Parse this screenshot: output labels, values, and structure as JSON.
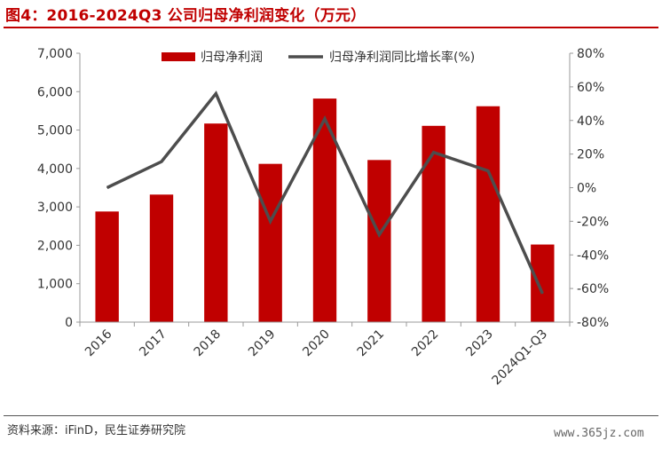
{
  "title": "图4：2016-2024Q3 公司归母净利润变化（万元）",
  "source": "资料来源：iFinD，民生证券研究院",
  "watermark": "www.365jz.com",
  "colors": {
    "bar": "#c00000",
    "line": "#4d4d4d",
    "axis": "#999999",
    "text": "#333333",
    "title": "#c00000"
  },
  "chart_data": {
    "type": "bar",
    "categories": [
      "2016",
      "2017",
      "2018",
      "2019",
      "2020",
      "2021",
      "2022",
      "2023",
      "2024Q1-Q3"
    ],
    "series": [
      {
        "name": "归母净利润",
        "type": "bar",
        "axis": "left",
        "values": [
          2880,
          3320,
          5170,
          4120,
          5820,
          4220,
          5110,
          5620,
          2020
        ]
      },
      {
        "name": "归母净利润同比增长率(%)",
        "type": "line",
        "axis": "right",
        "values": [
          0,
          15.5,
          56,
          -20,
          41,
          -28,
          21,
          10,
          -63
        ]
      }
    ],
    "y_left": {
      "min": 0,
      "max": 7000,
      "ticks": [
        0,
        1000,
        2000,
        3000,
        4000,
        5000,
        6000,
        7000
      ],
      "tick_labels": [
        "0",
        "1,000",
        "2,000",
        "3,000",
        "4,000",
        "5,000",
        "6,000",
        "7,000"
      ]
    },
    "y_right": {
      "min": -80,
      "max": 80,
      "ticks": [
        -80,
        -60,
        -40,
        -20,
        0,
        20,
        40,
        60,
        80
      ],
      "tick_labels": [
        "-80%",
        "-60%",
        "-40%",
        "-20%",
        "0%",
        "20%",
        "40%",
        "60%",
        "80%"
      ]
    },
    "legend_position": "top-center",
    "grid": false
  }
}
